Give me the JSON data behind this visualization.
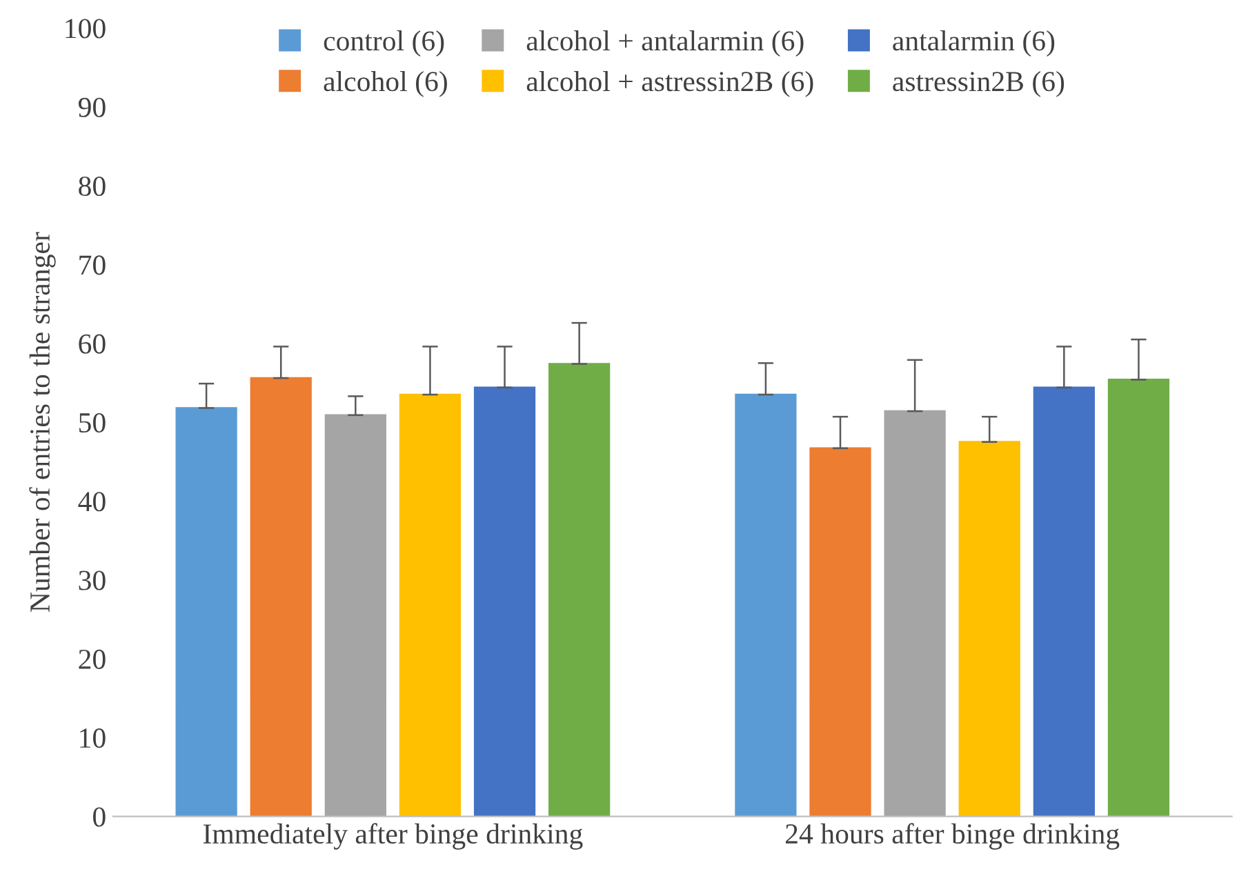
{
  "chart_data": {
    "type": "bar",
    "ylabel": "Number of entries to the stranger",
    "categories": [
      "Immediately after binge drinking",
      "24 hours after binge drinking"
    ],
    "series": [
      {
        "name": "control (6)",
        "color": "#5b9bd5",
        "values": [
          51.8,
          53.5
        ],
        "errors": [
          [
            51.8,
            54.9
          ],
          [
            53.5,
            57.5
          ]
        ]
      },
      {
        "name": "alcohol (6)",
        "color": "#ed7d31",
        "values": [
          55.6,
          46.7
        ],
        "errors": [
          [
            55.6,
            59.6
          ],
          [
            46.7,
            50.7
          ]
        ]
      },
      {
        "name": "alcohol + antalarmin (6)",
        "color": "#a5a5a5",
        "values": [
          50.9,
          51.4
        ],
        "errors": [
          [
            50.9,
            53.3
          ],
          [
            51.4,
            57.9
          ]
        ]
      },
      {
        "name": "alcohol + astressin2B (6)",
        "color": "#ffc000",
        "values": [
          53.5,
          47.5
        ],
        "errors": [
          [
            53.5,
            59.6
          ],
          [
            47.5,
            50.7
          ]
        ]
      },
      {
        "name": "antalarmin (6)",
        "color": "#4472c4",
        "values": [
          54.4,
          54.4
        ],
        "errors": [
          [
            54.4,
            59.6
          ],
          [
            54.4,
            59.6
          ]
        ]
      },
      {
        "name": "astressin2B (6)",
        "color": "#70ad47",
        "values": [
          57.4,
          55.4
        ],
        "errors": [
          [
            57.4,
            62.6
          ],
          [
            55.4,
            60.5
          ]
        ]
      }
    ],
    "ylim": [
      0,
      100
    ],
    "yticks": [
      0,
      10,
      20,
      30,
      40,
      50,
      60,
      70,
      80,
      90,
      100
    ],
    "grid": false,
    "legend": "top"
  }
}
